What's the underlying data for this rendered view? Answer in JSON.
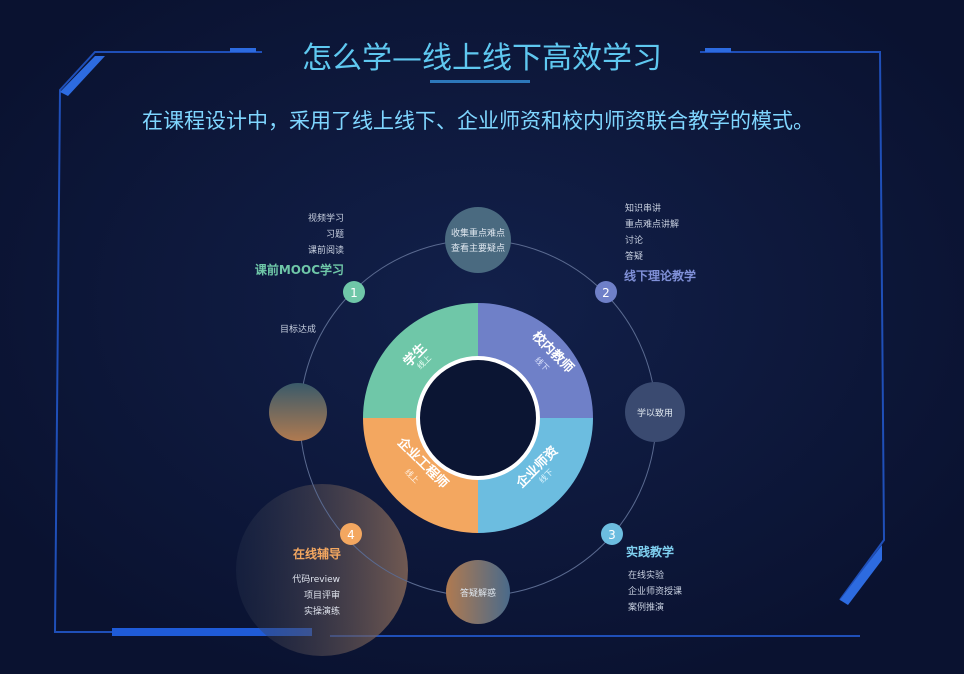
{
  "title": "怎么学—线上线下高效学习",
  "subtitle": "在课程设计中，采用了线上线下、企业师资和校内师资联合教学的模式。",
  "colors": {
    "background": "#0b1533",
    "frame": "#1f4fb8",
    "title": "#5fc8f0",
    "student": "#6fc7a8",
    "teacher": "#6f80c8",
    "industry": "#6cbde0",
    "engineer": "#f3a760"
  },
  "ring": [
    {
      "role": "学生",
      "mode": "线上"
    },
    {
      "role": "校内教师",
      "mode": "线下"
    },
    {
      "role": "企业师资",
      "mode": "线下"
    },
    {
      "role": "企业工程师",
      "mode": "线上"
    }
  ],
  "bubbles": {
    "top": [
      "收集重点难点",
      "查看主要疑点"
    ],
    "right": "学以致用",
    "bottom": "答疑解惑",
    "left_label": "目标达成"
  },
  "stages": [
    {
      "number": "1",
      "title": "课前MOOC学习",
      "items": [
        "视频学习",
        "习题",
        "课前阅读"
      ]
    },
    {
      "number": "2",
      "title": "线下理论教学",
      "items": [
        "知识串讲",
        "重点难点讲解",
        "讨论",
        "答疑"
      ]
    },
    {
      "number": "3",
      "title": "实践教学",
      "items": [
        "在线实验",
        "企业师资授课",
        "案例推演"
      ]
    },
    {
      "number": "4",
      "title": "在线辅导",
      "items": [
        "代码review",
        "项目评审",
        "实操演练"
      ]
    }
  ]
}
